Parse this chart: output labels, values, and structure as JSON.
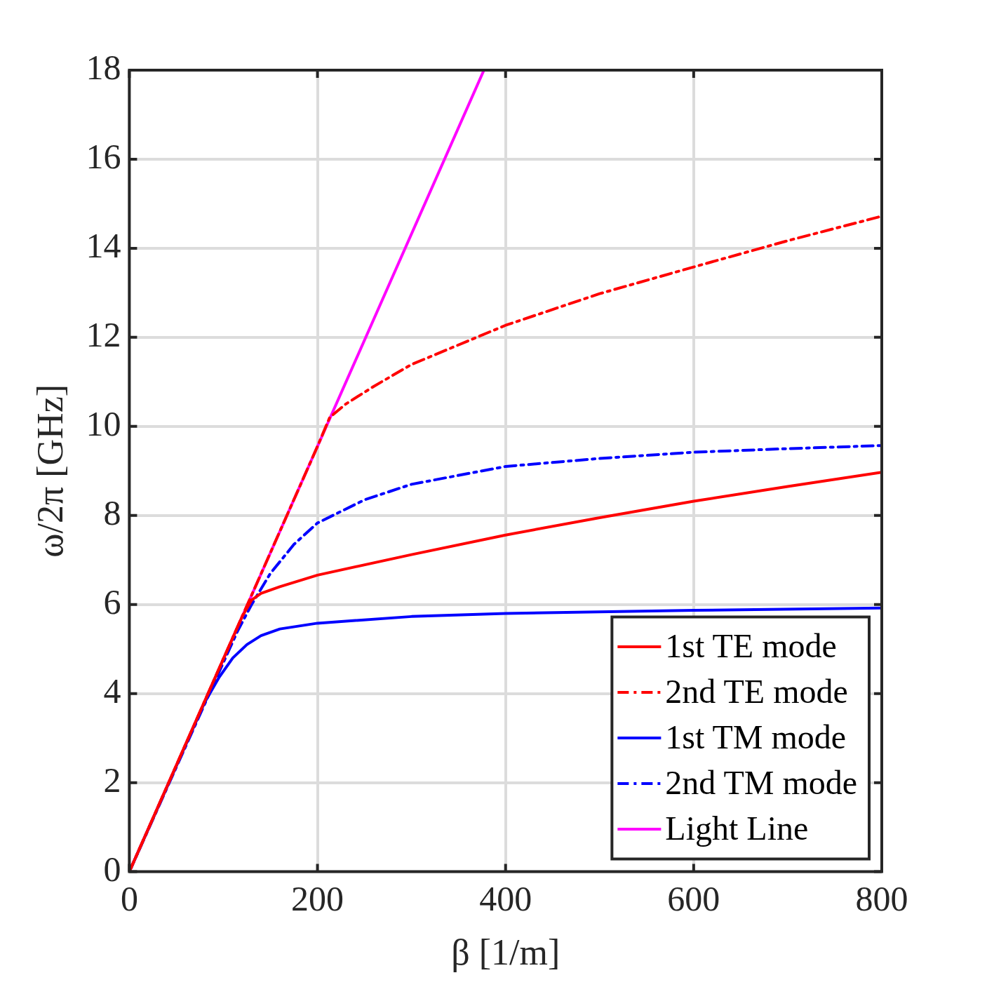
{
  "chart_data": {
    "type": "line",
    "xlabel": "β [1/m]",
    "ylabel": "ω/2π [GHz]",
    "xlim": [
      0,
      800
    ],
    "ylim": [
      0,
      18
    ],
    "xticks": [
      0,
      200,
      400,
      600,
      800
    ],
    "yticks": [
      0,
      2,
      4,
      6,
      8,
      10,
      12,
      14,
      16,
      18
    ],
    "grid": true,
    "legend": "bottom right",
    "marker": "none",
    "series": [
      {
        "name": "1st TE mode",
        "color": "#ff0000",
        "line_style": "solid",
        "x": [
          0,
          60,
          100,
          120,
          130,
          140,
          160,
          200,
          300,
          400,
          500,
          600,
          700,
          800
        ],
        "values": [
          0,
          2.87,
          4.78,
          5.73,
          6.1,
          6.25,
          6.4,
          6.66,
          7.12,
          7.56,
          7.95,
          8.32,
          8.65,
          8.97
        ]
      },
      {
        "name": "2nd TE mode",
        "color": "#ff0000",
        "line_style": "dashed",
        "x": [
          0,
          100,
          200,
          213,
          230,
          260,
          300,
          400,
          500,
          600,
          700,
          800
        ],
        "values": [
          0,
          4.78,
          9.55,
          10.2,
          10.5,
          10.9,
          11.39,
          12.27,
          12.98,
          13.58,
          14.17,
          14.72
        ]
      },
      {
        "name": "1st TM mode",
        "color": "#0000ff",
        "line_style": "solid",
        "x": [
          0,
          80,
          95,
          110,
          125,
          140,
          160,
          200,
          300,
          400,
          600,
          800
        ],
        "values": [
          0,
          3.8,
          4.35,
          4.8,
          5.1,
          5.3,
          5.45,
          5.58,
          5.73,
          5.8,
          5.87,
          5.92
        ]
      },
      {
        "name": "2nd TM mode",
        "color": "#0000ff",
        "line_style": "dashed",
        "x": [
          0,
          100,
          115,
          130,
          150,
          175,
          200,
          250,
          300,
          400,
          500,
          600,
          700,
          800
        ],
        "values": [
          0,
          4.7,
          5.4,
          6.0,
          6.7,
          7.35,
          7.83,
          8.35,
          8.7,
          9.1,
          9.28,
          9.42,
          9.5,
          9.57
        ]
      },
      {
        "name": "Light Line",
        "color": "#ff00ff",
        "line_style": "solid",
        "x": [
          0,
          377
        ],
        "values": [
          0,
          18
        ]
      }
    ]
  }
}
